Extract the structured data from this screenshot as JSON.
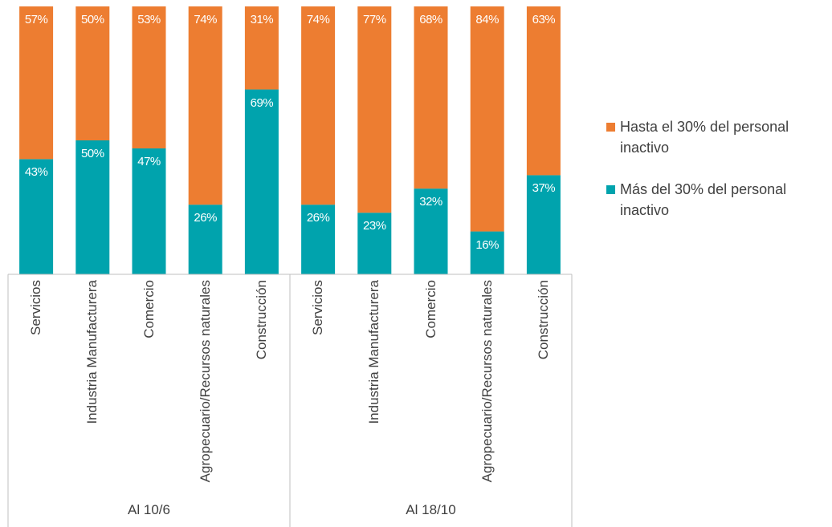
{
  "chart_data": {
    "type": "stacked_bar",
    "groups": [
      {
        "name": "Al 10/6",
        "categories": [
          "Servicios",
          "Industria Manufacturera",
          "Comercio",
          "Agropecuario/Recursos naturales",
          "Construcción"
        ]
      },
      {
        "name": "Al 18/10",
        "categories": [
          "Servicios",
          "Industria Manufacturera",
          "Comercio",
          "Agropecuario/Recursos naturales",
          "Construcción"
        ]
      }
    ],
    "series": [
      {
        "name": "Más del 30% del personal inactivo",
        "color": "#00a3ad",
        "values": [
          43,
          50,
          47,
          26,
          69,
          26,
          23,
          32,
          16,
          37
        ],
        "value_labels": [
          "43%",
          "50%",
          "47%",
          "26%",
          "69%",
          "26%",
          "23%",
          "32%",
          "16%",
          "37%"
        ]
      },
      {
        "name": "Hasta el 30% del personal inactivo",
        "color": "#ed7d31",
        "values": [
          57,
          50,
          53,
          74,
          31,
          74,
          77,
          68,
          84,
          63
        ],
        "value_labels": [
          "57%",
          "50%",
          "53%",
          "74%",
          "31%",
          "74%",
          "77%",
          "68%",
          "84%",
          "63%"
        ]
      }
    ],
    "ylim": [
      0,
      100
    ],
    "legend": "right"
  }
}
